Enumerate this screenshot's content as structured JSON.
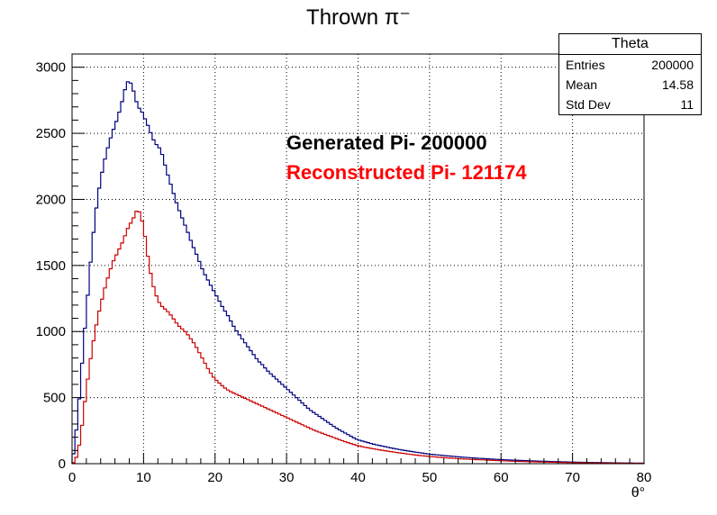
{
  "title": "Thrown π⁻",
  "stats_box": {
    "name": "Theta",
    "rows": [
      {
        "label": "Entries",
        "value": "200000"
      },
      {
        "label": "Mean",
        "value": "14.58"
      },
      {
        "label": "Std Dev",
        "value": "11"
      }
    ]
  },
  "annotations": {
    "generated": "Generated Pi- 200000",
    "reconstructed": "Reconstructed Pi- 121174"
  },
  "colors": {
    "generated": "#000080",
    "reconstructed": "#cc0000",
    "reconstructed_text": "#ff0000"
  },
  "chart_data": {
    "type": "histogram",
    "xlabel": "θ°",
    "ylabel": "",
    "xlim": [
      0,
      80
    ],
    "ylim": [
      0,
      3100
    ],
    "xticks": [
      0,
      10,
      20,
      30,
      40,
      50,
      60,
      70,
      80
    ],
    "yticks": [
      0,
      500,
      1000,
      1500,
      2000,
      2500,
      3000
    ],
    "grid": true,
    "bin_width": 0.4,
    "series": [
      {
        "key": "generated",
        "points": [
          [
            0,
            0
          ],
          [
            0.4,
            150
          ],
          [
            0.8,
            360
          ],
          [
            1.2,
            620
          ],
          [
            1.6,
            900
          ],
          [
            2,
            1150
          ],
          [
            2.4,
            1400
          ],
          [
            2.8,
            1650
          ],
          [
            3.2,
            1850
          ],
          [
            3.6,
            2020
          ],
          [
            4,
            2150
          ],
          [
            4.4,
            2260
          ],
          [
            4.8,
            2350
          ],
          [
            5.2,
            2430
          ],
          [
            5.6,
            2500
          ],
          [
            6,
            2560
          ],
          [
            6.4,
            2620
          ],
          [
            6.8,
            2700
          ],
          [
            7.2,
            2780
          ],
          [
            7.6,
            2880
          ],
          [
            8,
            2900
          ],
          [
            8.4,
            2860
          ],
          [
            8.8,
            2780
          ],
          [
            9.2,
            2700
          ],
          [
            9.6,
            2680
          ],
          [
            10,
            2640
          ],
          [
            10.4,
            2580
          ],
          [
            10.8,
            2540
          ],
          [
            11.2,
            2470
          ],
          [
            11.6,
            2430
          ],
          [
            12,
            2400
          ],
          [
            12.4,
            2380
          ],
          [
            12.8,
            2300
          ],
          [
            13.2,
            2220
          ],
          [
            13.6,
            2150
          ],
          [
            14,
            2080
          ],
          [
            14.4,
            2010
          ],
          [
            14.8,
            1940
          ],
          [
            15.2,
            1890
          ],
          [
            15.6,
            1830
          ],
          [
            16,
            1780
          ],
          [
            16.4,
            1720
          ],
          [
            16.8,
            1660
          ],
          [
            17.2,
            1610
          ],
          [
            17.6,
            1560
          ],
          [
            18,
            1500
          ],
          [
            18.4,
            1450
          ],
          [
            18.8,
            1410
          ],
          [
            19.2,
            1370
          ],
          [
            19.6,
            1330
          ],
          [
            20,
            1290
          ],
          [
            20.4,
            1250
          ],
          [
            20.8,
            1210
          ],
          [
            21.2,
            1170
          ],
          [
            21.6,
            1140
          ],
          [
            22,
            1100
          ],
          [
            22.4,
            1060
          ],
          [
            22.8,
            1020
          ],
          [
            23.2,
            990
          ],
          [
            23.6,
            960
          ],
          [
            24,
            930
          ],
          [
            24.4,
            900
          ],
          [
            24.8,
            870
          ],
          [
            25.2,
            840
          ],
          [
            25.6,
            810
          ],
          [
            26,
            780
          ],
          [
            26.4,
            760
          ],
          [
            26.8,
            740
          ],
          [
            27.2,
            710
          ],
          [
            27.6,
            690
          ],
          [
            28,
            670
          ],
          [
            28.4,
            650
          ],
          [
            28.8,
            630
          ],
          [
            29.2,
            610
          ],
          [
            29.6,
            590
          ],
          [
            30,
            570
          ],
          [
            30.4,
            550
          ],
          [
            30.8,
            530
          ],
          [
            31.2,
            510
          ],
          [
            31.6,
            490
          ],
          [
            32,
            470
          ],
          [
            32.4,
            450
          ],
          [
            32.8,
            430
          ],
          [
            33.2,
            410
          ],
          [
            33.6,
            395
          ],
          [
            34,
            380
          ],
          [
            34.4,
            365
          ],
          [
            34.8,
            350
          ],
          [
            35.2,
            335
          ],
          [
            35.6,
            320
          ],
          [
            36,
            305
          ],
          [
            36.4,
            290
          ],
          [
            36.8,
            275
          ],
          [
            37.2,
            262
          ],
          [
            37.6,
            250
          ],
          [
            38,
            238
          ],
          [
            38.4,
            226
          ],
          [
            38.8,
            214
          ],
          [
            39.2,
            202
          ],
          [
            39.6,
            190
          ],
          [
            40,
            180
          ],
          [
            41,
            165
          ],
          [
            42,
            150
          ],
          [
            43,
            138
          ],
          [
            44,
            126
          ],
          [
            45,
            115
          ],
          [
            46,
            105
          ],
          [
            47,
            96
          ],
          [
            48,
            88
          ],
          [
            49,
            80
          ],
          [
            50,
            72
          ],
          [
            52,
            62
          ],
          [
            54,
            52
          ],
          [
            56,
            44
          ],
          [
            58,
            37
          ],
          [
            60,
            31
          ],
          [
            62,
            26
          ],
          [
            64,
            22
          ],
          [
            66,
            18
          ],
          [
            68,
            15
          ],
          [
            70,
            12
          ],
          [
            72,
            10
          ],
          [
            74,
            8
          ],
          [
            76,
            6
          ],
          [
            78,
            5
          ],
          [
            80,
            4
          ]
        ]
      },
      {
        "key": "reconstructed",
        "points": [
          [
            0,
            0
          ],
          [
            0.4,
            15
          ],
          [
            0.8,
            80
          ],
          [
            1.2,
            200
          ],
          [
            1.6,
            380
          ],
          [
            2,
            560
          ],
          [
            2.4,
            720
          ],
          [
            2.8,
            870
          ],
          [
            3.2,
            990
          ],
          [
            3.6,
            1110
          ],
          [
            4,
            1200
          ],
          [
            4.4,
            1290
          ],
          [
            4.8,
            1370
          ],
          [
            5.2,
            1440
          ],
          [
            5.6,
            1510
          ],
          [
            6,
            1560
          ],
          [
            6.4,
            1600
          ],
          [
            6.8,
            1650
          ],
          [
            7.2,
            1690
          ],
          [
            7.6,
            1760
          ],
          [
            8,
            1800
          ],
          [
            8.4,
            1840
          ],
          [
            8.8,
            1880
          ],
          [
            9.2,
            1940
          ],
          [
            9.6,
            1870
          ],
          [
            10,
            1800
          ],
          [
            10.4,
            1640
          ],
          [
            10.8,
            1500
          ],
          [
            11.2,
            1380
          ],
          [
            11.6,
            1300
          ],
          [
            12,
            1240
          ],
          [
            12.4,
            1200
          ],
          [
            12.8,
            1180
          ],
          [
            13.2,
            1160
          ],
          [
            13.6,
            1140
          ],
          [
            14,
            1110
          ],
          [
            14.4,
            1080
          ],
          [
            14.8,
            1050
          ],
          [
            15.2,
            1030
          ],
          [
            15.6,
            1010
          ],
          [
            16,
            990
          ],
          [
            16.4,
            960
          ],
          [
            16.8,
            930
          ],
          [
            17.2,
            900
          ],
          [
            17.6,
            860
          ],
          [
            18,
            820
          ],
          [
            18.4,
            780
          ],
          [
            18.8,
            740
          ],
          [
            19.2,
            700
          ],
          [
            19.6,
            670
          ],
          [
            20,
            640
          ],
          [
            20.4,
            620
          ],
          [
            20.8,
            600
          ],
          [
            21.2,
            580
          ],
          [
            21.6,
            565
          ],
          [
            22,
            550
          ],
          [
            22.4,
            540
          ],
          [
            22.8,
            530
          ],
          [
            23.2,
            520
          ],
          [
            23.6,
            510
          ],
          [
            24,
            500
          ],
          [
            24.4,
            490
          ],
          [
            24.8,
            480
          ],
          [
            25.2,
            470
          ],
          [
            25.6,
            460
          ],
          [
            26,
            450
          ],
          [
            26.4,
            440
          ],
          [
            26.8,
            430
          ],
          [
            27.2,
            420
          ],
          [
            27.6,
            410
          ],
          [
            28,
            400
          ],
          [
            28.4,
            390
          ],
          [
            28.8,
            380
          ],
          [
            29.2,
            370
          ],
          [
            29.6,
            360
          ],
          [
            30,
            350
          ],
          [
            30.4,
            340
          ],
          [
            30.8,
            330
          ],
          [
            31.2,
            320
          ],
          [
            31.6,
            310
          ],
          [
            32,
            300
          ],
          [
            32.4,
            290
          ],
          [
            32.8,
            280
          ],
          [
            33.2,
            270
          ],
          [
            33.6,
            260
          ],
          [
            34,
            250
          ],
          [
            34.4,
            242
          ],
          [
            34.8,
            234
          ],
          [
            35.2,
            226
          ],
          [
            35.6,
            218
          ],
          [
            36,
            210
          ],
          [
            36.4,
            202
          ],
          [
            36.8,
            194
          ],
          [
            37.2,
            186
          ],
          [
            37.6,
            178
          ],
          [
            38,
            170
          ],
          [
            38.4,
            163
          ],
          [
            38.8,
            156
          ],
          [
            39.2,
            149
          ],
          [
            39.6,
            142
          ],
          [
            40,
            136
          ],
          [
            41,
            124
          ],
          [
            42,
            114
          ],
          [
            43,
            105
          ],
          [
            44,
            96
          ],
          [
            45,
            88
          ],
          [
            46,
            80
          ],
          [
            47,
            73
          ],
          [
            48,
            66
          ],
          [
            49,
            60
          ],
          [
            50,
            55
          ],
          [
            52,
            46
          ],
          [
            54,
            38
          ],
          [
            56,
            32
          ],
          [
            58,
            27
          ],
          [
            60,
            22
          ],
          [
            62,
            18
          ],
          [
            64,
            15
          ],
          [
            66,
            12
          ],
          [
            68,
            10
          ],
          [
            70,
            8
          ],
          [
            72,
            6
          ],
          [
            74,
            5
          ],
          [
            76,
            4
          ],
          [
            78,
            3
          ],
          [
            80,
            3
          ]
        ]
      }
    ]
  }
}
